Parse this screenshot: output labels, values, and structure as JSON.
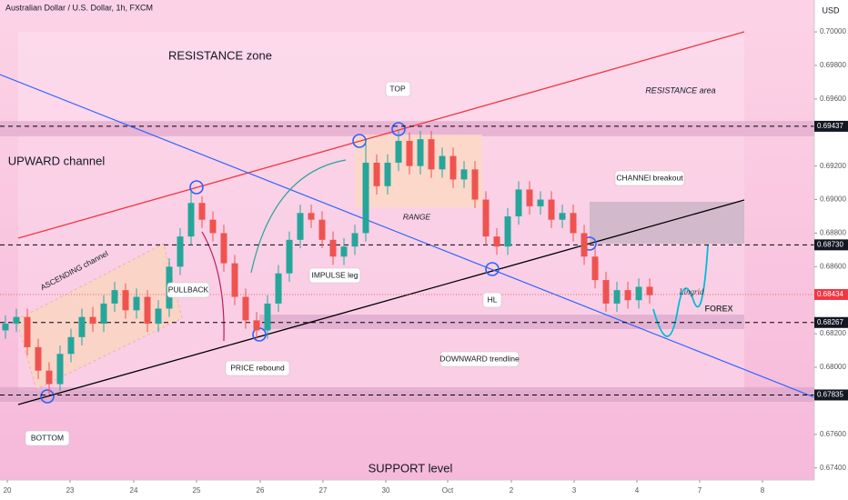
{
  "chart_data": {
    "type": "candlestick",
    "title": "Australian Dollar / U.S. Dollar, 1h, FXCM",
    "currency": "USD",
    "watermark": [
      "Lingrid",
      "FOREX"
    ],
    "up_color": "#26a69a",
    "down_color": "#ef5350",
    "xlim": [
      -0.5,
      74.08
    ],
    "ylim": [
      0.67328,
      0.7019
    ],
    "xticks": [
      {
        "value": 0.17,
        "label": "20"
      },
      {
        "value": 5.92,
        "label": "23"
      },
      {
        "value": 11.75,
        "label": "24"
      },
      {
        "value": 17.5,
        "label": "25"
      },
      {
        "value": 23.33,
        "label": "26"
      },
      {
        "value": 29.08,
        "label": "27"
      },
      {
        "value": 34.83,
        "label": "30"
      },
      {
        "value": 40.5,
        "label": "Oct"
      },
      {
        "value": 46.33,
        "label": "2"
      },
      {
        "value": 52.08,
        "label": "3"
      },
      {
        "value": 57.83,
        "label": "4"
      },
      {
        "value": 63.58,
        "label": "7"
      },
      {
        "value": 69.33,
        "label": "8"
      }
    ],
    "yticks": [
      {
        "value": 0.7,
        "label": "0.70000"
      },
      {
        "value": 0.698,
        "label": "0.69800"
      },
      {
        "value": 0.696,
        "label": "0.69600"
      },
      {
        "value": 0.692,
        "label": "0.69200"
      },
      {
        "value": 0.69,
        "label": "0.69000"
      },
      {
        "value": 0.688,
        "label": "0.68800"
      },
      {
        "value": 0.686,
        "label": "0.68600"
      },
      {
        "value": 0.682,
        "label": "0.68200"
      },
      {
        "value": 0.68,
        "label": "0.68000"
      },
      {
        "value": 0.676,
        "label": "0.67600"
      },
      {
        "value": 0.674,
        "label": "0.67400"
      }
    ],
    "levels": [
      0.69437,
      {
        "value": 0.6873,
        "label": "0.68730"
      },
      0.68267,
      0.67835
    ],
    "last_price": 0.68434,
    "annotations": [
      "RESISTANCE zone",
      "RESISTANCE area",
      "TOP",
      "UPWARD channel",
      "ASCENDING channel",
      "PULLBACK",
      "IMPULSE leg",
      "RANGE",
      "CHANNEl breakout",
      "HL",
      "DOWNWARD trendline",
      "PRICE rebound",
      "BOTTOM",
      "SUPPORT level"
    ],
    "x": [
      0,
      1,
      2,
      3,
      4,
      5,
      6,
      7,
      8,
      9,
      10,
      11,
      12,
      13,
      14,
      15,
      16,
      17,
      18,
      19,
      20,
      21,
      22,
      23,
      24,
      25,
      26,
      27,
      28,
      29,
      30,
      31,
      32,
      33,
      34,
      35,
      36,
      37,
      38,
      39,
      40,
      41,
      42,
      43,
      44,
      45,
      46,
      47,
      48,
      49,
      50,
      51,
      52,
      53,
      54,
      55,
      56,
      57,
      58,
      59
    ],
    "ohlc": [
      [
        0.6822,
        0.6831,
        0.6817,
        0.6826
      ],
      [
        0.6826,
        0.6835,
        0.6821,
        0.683
      ],
      [
        0.683,
        0.6835,
        0.6807,
        0.6812
      ],
      [
        0.6812,
        0.6817,
        0.6793,
        0.6798
      ],
      [
        0.6798,
        0.6803,
        0.6784,
        0.679
      ],
      [
        0.679,
        0.6813,
        0.6786,
        0.6808
      ],
      [
        0.6808,
        0.6823,
        0.6803,
        0.6818
      ],
      [
        0.6818,
        0.6835,
        0.6813,
        0.683
      ],
      [
        0.683,
        0.6836,
        0.6821,
        0.6826
      ],
      [
        0.6826,
        0.6843,
        0.6821,
        0.6838
      ],
      [
        0.6838,
        0.6851,
        0.6833,
        0.6846
      ],
      [
        0.6846,
        0.685,
        0.6829,
        0.6834
      ],
      [
        0.6834,
        0.6847,
        0.6829,
        0.6842
      ],
      [
        0.6842,
        0.6846,
        0.6821,
        0.6826
      ],
      [
        0.6826,
        0.684,
        0.6821,
        0.6835
      ],
      [
        0.6835,
        0.6865,
        0.683,
        0.686
      ],
      [
        0.686,
        0.6883,
        0.6855,
        0.6878
      ],
      [
        0.6878,
        0.6905,
        0.6873,
        0.6898
      ],
      [
        0.6898,
        0.6902,
        0.6883,
        0.6888
      ],
      [
        0.6888,
        0.6893,
        0.6875,
        0.688
      ],
      [
        0.688,
        0.6885,
        0.6857,
        0.6862
      ],
      [
        0.6862,
        0.6867,
        0.6837,
        0.6842
      ],
      [
        0.6842,
        0.6847,
        0.6823,
        0.6828
      ],
      [
        0.6828,
        0.6833,
        0.6817,
        0.6822
      ],
      [
        0.6822,
        0.6843,
        0.6817,
        0.6838
      ],
      [
        0.6838,
        0.6861,
        0.6833,
        0.6856
      ],
      [
        0.6856,
        0.6881,
        0.6851,
        0.6876
      ],
      [
        0.6876,
        0.6897,
        0.6871,
        0.6892
      ],
      [
        0.6892,
        0.6897,
        0.6883,
        0.6888
      ],
      [
        0.6888,
        0.6893,
        0.6871,
        0.6876
      ],
      [
        0.6876,
        0.6881,
        0.6861,
        0.6866
      ],
      [
        0.6866,
        0.6877,
        0.6861,
        0.6872
      ],
      [
        0.6872,
        0.6885,
        0.6867,
        0.688
      ],
      [
        0.688,
        0.6935,
        0.6875,
        0.6922
      ],
      [
        0.6922,
        0.6927,
        0.6903,
        0.6908
      ],
      [
        0.6908,
        0.6927,
        0.6903,
        0.6922
      ],
      [
        0.6922,
        0.6942,
        0.6917,
        0.6935
      ],
      [
        0.6935,
        0.694,
        0.6915,
        0.692
      ],
      [
        0.692,
        0.6941,
        0.6915,
        0.6936
      ],
      [
        0.6936,
        0.6941,
        0.6913,
        0.6918
      ],
      [
        0.6918,
        0.6931,
        0.6913,
        0.6926
      ],
      [
        0.6926,
        0.6931,
        0.6907,
        0.6912
      ],
      [
        0.6912,
        0.6923,
        0.6907,
        0.6918
      ],
      [
        0.6918,
        0.6923,
        0.6895,
        0.69
      ],
      [
        0.69,
        0.6905,
        0.6873,
        0.6878
      ],
      [
        0.6878,
        0.6883,
        0.6867,
        0.6872
      ],
      [
        0.6872,
        0.6895,
        0.6867,
        0.689
      ],
      [
        0.689,
        0.6911,
        0.6885,
        0.6906
      ],
      [
        0.6906,
        0.6911,
        0.6891,
        0.6896
      ],
      [
        0.6896,
        0.6905,
        0.6891,
        0.69
      ],
      [
        0.69,
        0.6905,
        0.6883,
        0.6888
      ],
      [
        0.6888,
        0.6897,
        0.6883,
        0.6892
      ],
      [
        0.6892,
        0.6897,
        0.6875,
        0.688
      ],
      [
        0.688,
        0.6885,
        0.6861,
        0.6866
      ],
      [
        0.6866,
        0.6871,
        0.6847,
        0.6852
      ],
      [
        0.6852,
        0.6857,
        0.6833,
        0.6838
      ],
      [
        0.6838,
        0.6851,
        0.6833,
        0.6846
      ],
      [
        0.6846,
        0.6851,
        0.6835,
        0.684
      ],
      [
        0.684,
        0.6853,
        0.6835,
        0.6848
      ],
      [
        0.6848,
        0.6853,
        0.6838,
        0.6843
      ]
    ]
  }
}
